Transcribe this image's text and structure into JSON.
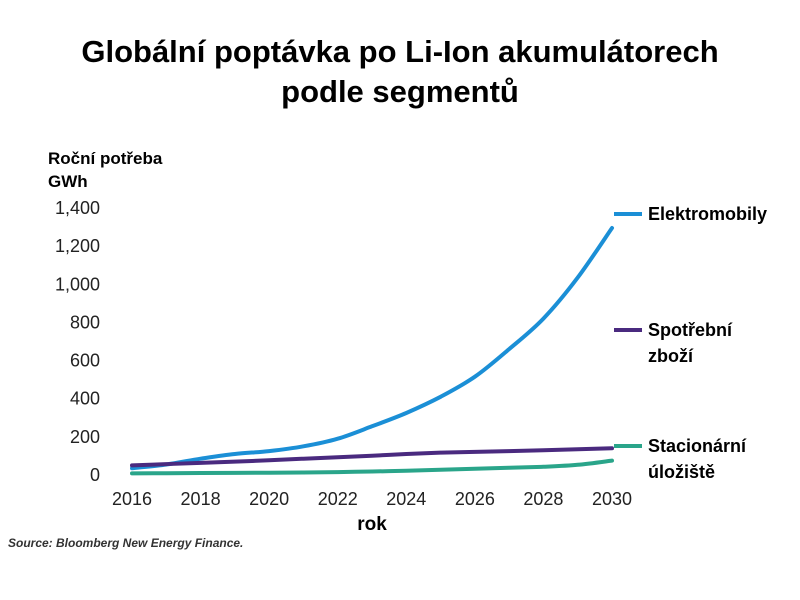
{
  "chart_data": {
    "type": "line",
    "title_lines": [
      "Globální poptávka po Li-Ion akumulátorech",
      "podle segmentů"
    ],
    "ylabel_lines": [
      "Roční potřeba",
      "GWh"
    ],
    "xlabel": "rok",
    "x": [
      2016,
      2017,
      2018,
      2019,
      2020,
      2021,
      2022,
      2023,
      2024,
      2025,
      2026,
      2027,
      2028,
      2029,
      2030
    ],
    "xticks": [
      2016,
      2018,
      2020,
      2022,
      2024,
      2026,
      2028,
      2030
    ],
    "yticks": [
      0,
      200,
      400,
      600,
      800,
      1000,
      1200,
      1400
    ],
    "ytick_labels": [
      "0",
      "200",
      "400",
      "600",
      "800",
      "1,000",
      "1,200",
      "1,400"
    ],
    "xlim": [
      2016,
      2030
    ],
    "ylim": [
      0,
      1400
    ],
    "grid": false,
    "series": [
      {
        "name_lines": [
          "Elektromobily"
        ],
        "color": "#1b8fd6",
        "values": [
          30,
          50,
          80,
          105,
          120,
          145,
          185,
          250,
          320,
          405,
          510,
          655,
          815,
          1030,
          1290
        ]
      },
      {
        "name_lines": [
          "Spotřební",
          "zboží"
        ],
        "color": "#4a2a7f",
        "values": [
          45,
          52,
          58,
          65,
          72,
          80,
          88,
          96,
          105,
          112,
          116,
          120,
          125,
          130,
          135
        ]
      },
      {
        "name_lines": [
          "Stacionární",
          "úložiště"
        ],
        "color": "#2aa58a",
        "values": [
          3,
          4,
          5,
          6,
          7,
          8,
          10,
          13,
          17,
          22,
          28,
          33,
          38,
          48,
          70
        ]
      }
    ],
    "source": "Source: Bloomberg New Energy Finance."
  }
}
